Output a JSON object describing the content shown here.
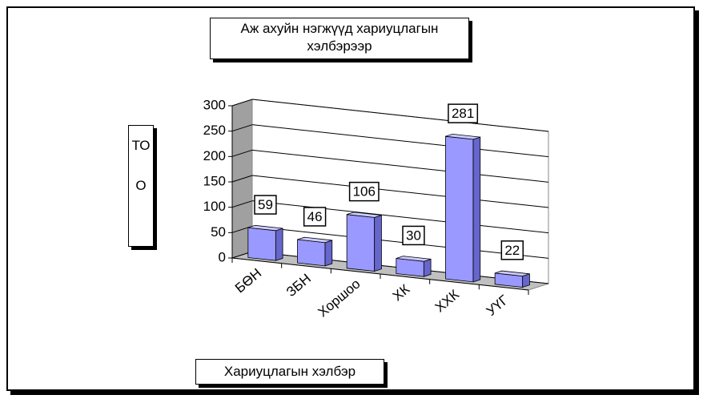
{
  "chart_data": {
    "type": "bar3d",
    "title": "Аж ахуйн нэгжүүд хариуцлагын хэлбэрээр",
    "y_label": "ТОО",
    "x_label": "Хариуцлагын хэлбэр",
    "categories": [
      "БӨН",
      "ЗБН",
      "Хоршоо",
      "ХК",
      "ХХК",
      "УҮГ"
    ],
    "values": [
      59,
      46,
      106,
      30,
      281,
      22
    ],
    "color": "#9999ff",
    "ylim": [
      0,
      300
    ],
    "yticks": [
      0,
      50,
      100,
      150,
      200,
      250,
      300
    ],
    "grid": true
  }
}
